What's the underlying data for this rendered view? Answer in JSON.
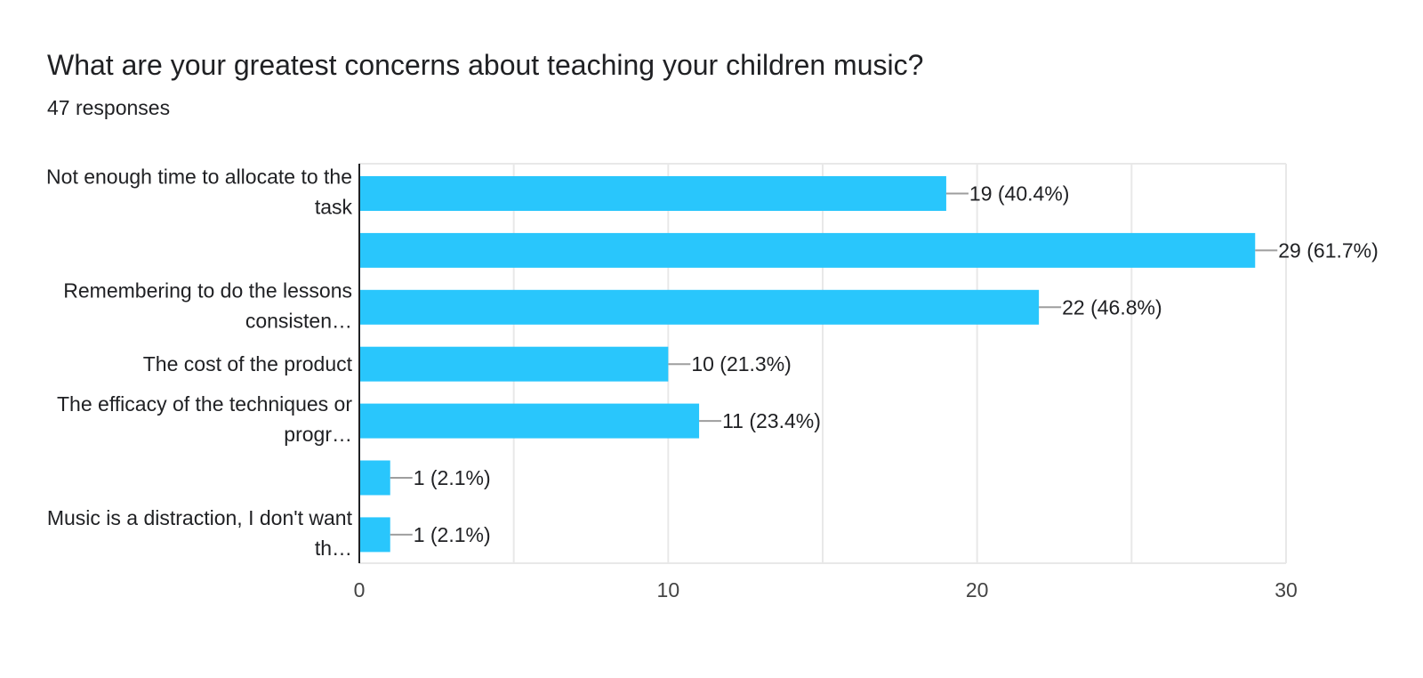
{
  "title": "What are your greatest concerns about teaching your children music?",
  "subtitle": "47 responses",
  "colors": {
    "bar": "#29c6fc",
    "grid": "#e8e8e8",
    "axis": "#202124",
    "leader": "#9e9e9e"
  },
  "chart_data": {
    "type": "bar",
    "orientation": "horizontal",
    "categories": [
      "Not enough time to allocate to the task",
      "",
      "Remembering to do the lessons consisten…",
      "The cost of the product",
      "The efficacy of the techniques or progr…",
      "",
      "Music is a distraction, I don't want th…"
    ],
    "category_label_lines": [
      [
        "Not enough time to allocate to the",
        "task"
      ],
      [],
      [
        "Remembering to do the lessons",
        "consisten…"
      ],
      [
        "The cost of the product"
      ],
      [
        "The efficacy of the techniques or",
        "progr…"
      ],
      [],
      [
        "Music is a distraction, I don't want",
        "th…"
      ]
    ],
    "values": [
      19,
      29,
      22,
      10,
      11,
      1,
      1
    ],
    "data_labels": [
      "19 (40.4%)",
      "29 (61.7%)",
      "22 (46.8%)",
      "10 (21.3%)",
      "11 (23.4%)",
      "1 (2.1%)",
      "1 (2.1%)"
    ],
    "xlim": [
      0,
      30
    ],
    "x_ticks": [
      0,
      10,
      20,
      30
    ],
    "x_tick_labels": [
      "0",
      "10",
      "20",
      "30"
    ],
    "grid": true
  }
}
